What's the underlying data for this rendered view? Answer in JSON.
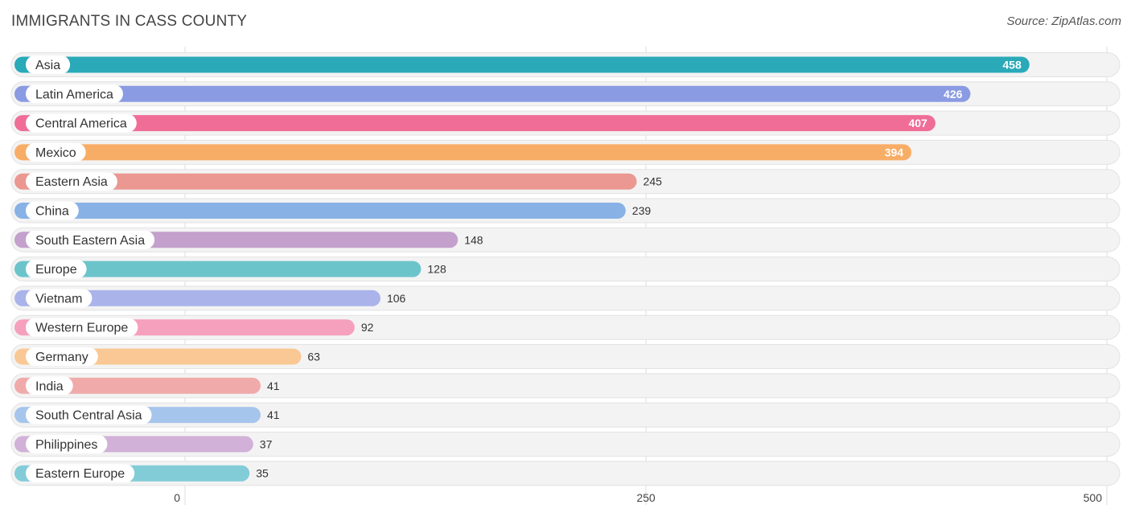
{
  "header": {
    "title": "IMMIGRANTS IN CASS COUNTY",
    "source": "Source: ZipAtlas.com"
  },
  "chart_data": {
    "type": "bar",
    "orientation": "horizontal",
    "title": "IMMIGRANTS IN CASS COUNTY",
    "xlabel": "",
    "ylabel": "",
    "xlim": [
      0,
      500
    ],
    "ticks": [
      0,
      250,
      500
    ],
    "grid": true,
    "categories": [
      "Asia",
      "Latin America",
      "Central America",
      "Mexico",
      "Eastern Asia",
      "China",
      "South Eastern Asia",
      "Europe",
      "Vietnam",
      "Western Europe",
      "Germany",
      "India",
      "South Central Asia",
      "Philippines",
      "Eastern Europe"
    ],
    "values": [
      458,
      426,
      407,
      394,
      245,
      239,
      148,
      128,
      106,
      92,
      63,
      41,
      41,
      37,
      35
    ],
    "colors": [
      "#2aa9b8",
      "#8a9be3",
      "#f06d98",
      "#f8ad66",
      "#ea9891",
      "#88b2e6",
      "#c4a0cc",
      "#6cc4cb",
      "#aab4ea",
      "#f5a0bc",
      "#f9c894",
      "#f0aaaa",
      "#a6c5ec",
      "#d1b1d8",
      "#82ccd8"
    ],
    "value_label_inside": [
      true,
      true,
      true,
      true,
      false,
      false,
      false,
      false,
      false,
      false,
      false,
      false,
      false,
      false,
      false
    ]
  }
}
